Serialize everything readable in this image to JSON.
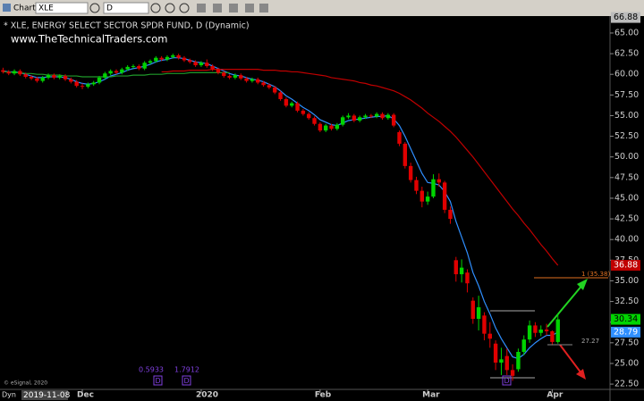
{
  "chart_data": {
    "type": "candlestick",
    "toolbar": {
      "menu": "Chart",
      "symbol": "XLE",
      "interval": "D"
    },
    "title": "* XLE, ENERGY SELECT SECTOR SPDR FUND, D (Dynamic)",
    "subtitle": "www.TheTechnicalTraders.com",
    "copyright": "© eSignal, 2020",
    "mode": "Dyn",
    "cursor_date": "2019-11-08",
    "categories": [
      null,
      null,
      null,
      null,
      null,
      null,
      null,
      null,
      null,
      null,
      null,
      null,
      null,
      null,
      "Dec",
      null,
      null,
      null,
      null,
      null,
      null,
      null,
      null,
      null,
      null,
      null,
      null,
      null,
      null,
      null,
      null,
      null,
      null,
      null,
      null,
      "2020",
      null,
      null,
      null,
      null,
      null,
      null,
      null,
      null,
      null,
      null,
      null,
      null,
      null,
      null,
      null,
      null,
      null,
      null,
      null,
      null,
      "Feb",
      null,
      null,
      null,
      null,
      null,
      null,
      null,
      null,
      null,
      null,
      null,
      null,
      null,
      null,
      null,
      null,
      null,
      null,
      "Mar",
      null,
      null,
      null,
      null,
      null,
      null,
      null,
      null,
      null,
      null,
      null,
      null,
      null,
      null,
      null,
      null,
      null,
      null,
      null,
      null,
      null,
      "Apr",
      null
    ],
    "ohlc": [
      [
        60.5,
        60.8,
        60.1,
        60.3
      ],
      [
        60.3,
        60.5,
        59.9,
        60.1
      ],
      [
        60.1,
        60.6,
        59.9,
        60.4
      ],
      [
        60.4,
        60.6,
        59.8,
        60.0
      ],
      [
        60.0,
        60.2,
        59.5,
        59.7
      ],
      [
        59.7,
        59.9,
        59.3,
        59.5
      ],
      [
        59.5,
        59.7,
        59.0,
        59.2
      ],
      [
        59.2,
        59.8,
        59.0,
        59.6
      ],
      [
        59.6,
        60.1,
        59.4,
        59.9
      ],
      [
        59.9,
        60.1,
        59.4,
        59.6
      ],
      [
        59.6,
        60.0,
        59.4,
        59.8
      ],
      [
        59.8,
        60.0,
        59.2,
        59.4
      ],
      [
        59.4,
        59.6,
        58.9,
        59.1
      ],
      [
        59.1,
        59.3,
        58.4,
        58.6
      ],
      [
        58.6,
        58.9,
        58.2,
        58.5
      ],
      [
        58.5,
        59.0,
        58.3,
        58.8
      ],
      [
        58.8,
        59.2,
        58.6,
        59.0
      ],
      [
        59.0,
        59.8,
        58.8,
        59.6
      ],
      [
        59.6,
        60.3,
        59.4,
        60.1
      ],
      [
        60.1,
        60.6,
        59.9,
        60.4
      ],
      [
        60.4,
        60.6,
        60.0,
        60.2
      ],
      [
        60.2,
        60.8,
        60.0,
        60.6
      ],
      [
        60.6,
        61.1,
        60.4,
        60.9
      ],
      [
        60.9,
        61.2,
        60.7,
        61.0
      ],
      [
        61.0,
        61.2,
        60.5,
        60.7
      ],
      [
        60.7,
        61.6,
        60.5,
        61.4
      ],
      [
        61.4,
        61.8,
        61.2,
        61.6
      ],
      [
        61.6,
        62.2,
        61.4,
        62.0
      ],
      [
        62.0,
        62.2,
        61.6,
        61.8
      ],
      [
        61.8,
        62.3,
        61.6,
        62.1
      ],
      [
        62.1,
        62.5,
        61.9,
        62.3
      ],
      [
        62.3,
        62.5,
        61.8,
        62.0
      ],
      [
        62.0,
        62.2,
        61.5,
        61.7
      ],
      [
        61.7,
        61.9,
        61.3,
        61.5
      ],
      [
        61.5,
        61.7,
        60.9,
        61.1
      ],
      [
        61.1,
        61.6,
        60.9,
        61.4
      ],
      [
        61.4,
        61.8,
        60.8,
        61.0
      ],
      [
        61.0,
        61.2,
        60.4,
        60.6
      ],
      [
        60.6,
        60.8,
        60.0,
        60.2
      ],
      [
        60.2,
        60.4,
        59.6,
        59.8
      ],
      [
        59.8,
        60.0,
        59.4,
        59.6
      ],
      [
        59.6,
        60.1,
        59.4,
        59.9
      ],
      [
        59.9,
        60.1,
        59.3,
        59.5
      ],
      [
        59.5,
        59.7,
        59.0,
        59.2
      ],
      [
        59.2,
        59.6,
        59.0,
        59.4
      ],
      [
        59.4,
        59.6,
        58.8,
        59.0
      ],
      [
        59.0,
        59.2,
        58.5,
        58.7
      ],
      [
        58.7,
        58.9,
        58.2,
        58.4
      ],
      [
        58.4,
        58.6,
        57.6,
        57.8
      ],
      [
        57.8,
        58.0,
        56.8,
        57.0
      ],
      [
        57.0,
        57.2,
        56.0,
        56.2
      ],
      [
        56.2,
        56.7,
        56.0,
        56.5
      ],
      [
        56.5,
        56.7,
        55.4,
        55.6
      ],
      [
        55.6,
        55.8,
        55.0,
        55.2
      ],
      [
        55.2,
        55.4,
        54.5,
        54.7
      ],
      [
        54.7,
        54.9,
        53.8,
        54.0
      ],
      [
        54.0,
        54.2,
        53.0,
        53.2
      ],
      [
        53.2,
        54.0,
        53.0,
        53.8
      ],
      [
        53.8,
        54.0,
        53.2,
        53.4
      ],
      [
        53.4,
        54.1,
        53.2,
        53.9
      ],
      [
        53.9,
        55.0,
        53.7,
        54.8
      ],
      [
        54.8,
        55.3,
        54.6,
        55.0
      ],
      [
        55.0,
        55.2,
        54.2,
        54.4
      ],
      [
        54.4,
        55.0,
        54.2,
        54.8
      ],
      [
        54.8,
        55.2,
        54.6,
        55.0
      ],
      [
        55.0,
        55.2,
        54.7,
        54.9
      ],
      [
        54.9,
        55.4,
        54.7,
        55.2
      ],
      [
        55.2,
        55.4,
        54.5,
        54.7
      ],
      [
        54.7,
        55.3,
        54.5,
        55.1
      ],
      [
        55.1,
        55.3,
        53.6,
        53.8
      ],
      [
        53.0,
        53.2,
        51.3,
        51.6
      ],
      [
        51.6,
        51.8,
        48.6,
        48.9
      ],
      [
        48.9,
        49.3,
        46.9,
        47.2
      ],
      [
        47.2,
        47.6,
        45.5,
        45.9
      ],
      [
        45.9,
        46.4,
        43.9,
        44.6
      ],
      [
        44.6,
        45.8,
        44.2,
        45.2
      ],
      [
        45.2,
        47.9,
        45.0,
        47.3
      ],
      [
        47.3,
        48.0,
        46.4,
        46.9
      ],
      [
        46.9,
        47.1,
        43.2,
        43.6
      ],
      [
        43.6,
        44.0,
        41.9,
        42.5
      ],
      [
        37.5,
        37.9,
        34.9,
        35.8
      ],
      [
        35.8,
        37.6,
        34.8,
        36.6
      ],
      [
        36.0,
        36.4,
        33.6,
        34.7
      ],
      [
        32.6,
        33.0,
        29.8,
        30.4
      ],
      [
        30.4,
        33.2,
        29.0,
        31.8
      ],
      [
        30.8,
        31.2,
        27.8,
        28.6
      ],
      [
        28.6,
        30.0,
        26.9,
        28.0
      ],
      [
        27.4,
        27.8,
        24.2,
        25.1
      ],
      [
        25.1,
        26.9,
        23.6,
        25.5
      ],
      [
        25.9,
        26.8,
        23.6,
        24.2
      ],
      [
        24.2,
        24.9,
        22.9,
        23.5
      ],
      [
        24.3,
        26.8,
        24.0,
        26.4
      ],
      [
        26.4,
        28.4,
        26.0,
        27.9
      ],
      [
        27.9,
        30.2,
        27.5,
        29.6
      ],
      [
        29.6,
        30.0,
        28.2,
        28.7
      ],
      [
        28.7,
        29.6,
        28.3,
        29.1
      ],
      [
        29.1,
        29.8,
        28.4,
        28.9
      ],
      [
        28.9,
        29.0,
        27.2,
        27.6
      ],
      [
        27.6,
        31.0,
        27.4,
        30.34
      ]
    ],
    "up_color": "#00d400",
    "down_color": "#e00000",
    "series": [
      {
        "color": "#2f8fff",
        "values": [
          60.4,
          60.3,
          60.3,
          60.2,
          60.0,
          59.8,
          59.6,
          59.6,
          59.7,
          59.7,
          59.7,
          59.6,
          59.4,
          59.1,
          58.9,
          58.8,
          58.9,
          59.1,
          59.4,
          59.8,
          60.0,
          60.2,
          60.5,
          60.7,
          60.8,
          61.0,
          61.2,
          61.5,
          61.7,
          61.8,
          62.0,
          62.0,
          61.9,
          61.7,
          61.5,
          61.4,
          61.3,
          61.0,
          60.7,
          60.4,
          60.1,
          59.9,
          59.8,
          59.6,
          59.4,
          59.3,
          59.1,
          58.8,
          58.5,
          58.0,
          57.4,
          57.0,
          56.5,
          56.0,
          55.6,
          55.1,
          54.5,
          54.2,
          53.9,
          53.8,
          54.1,
          54.4,
          54.5,
          54.6,
          54.7,
          54.8,
          54.9,
          54.9,
          55.0,
          54.6,
          53.8,
          52.5,
          51.0,
          49.5,
          48.0,
          46.9,
          46.8,
          46.6,
          45.8,
          44.6,
          42.2,
          40.3,
          38.4,
          36.0,
          34.4,
          32.5,
          31.0,
          29.3,
          28.0,
          26.9,
          25.8,
          25.6,
          26.1,
          26.9,
          27.5,
          28.0,
          28.4,
          28.4,
          28.79
        ]
      },
      {
        "color": "#c00000",
        "values": [
          null,
          null,
          null,
          null,
          null,
          null,
          null,
          null,
          null,
          null,
          null,
          null,
          null,
          null,
          null,
          null,
          null,
          null,
          null,
          null,
          null,
          null,
          null,
          null,
          null,
          null,
          null,
          null,
          60.3,
          60.3,
          60.4,
          60.4,
          60.4,
          60.5,
          60.5,
          60.5,
          60.5,
          60.6,
          60.6,
          60.6,
          60.6,
          60.6,
          60.6,
          60.6,
          60.6,
          60.6,
          60.5,
          60.5,
          60.5,
          60.4,
          60.4,
          60.3,
          60.3,
          60.2,
          60.1,
          60.0,
          59.9,
          59.8,
          59.6,
          59.5,
          59.4,
          59.3,
          59.2,
          59.0,
          58.9,
          58.7,
          58.6,
          58.4,
          58.2,
          58.0,
          57.7,
          57.3,
          56.9,
          56.4,
          55.9,
          55.3,
          54.8,
          54.3,
          53.7,
          53.1,
          52.4,
          51.6,
          50.8,
          50.0,
          49.1,
          48.2,
          47.3,
          46.4,
          45.5,
          44.6,
          43.7,
          42.9,
          42.0,
          41.2,
          40.3,
          39.4,
          38.6,
          37.7,
          36.88
        ]
      },
      {
        "color": "#1f9a2a",
        "values": [
          60.3,
          60.3,
          60.2,
          60.2,
          60.1,
          60.1,
          60.0,
          60.0,
          59.9,
          59.9,
          59.9,
          59.8,
          59.8,
          59.8,
          59.7,
          59.7,
          59.7,
          59.7,
          59.7,
          59.7,
          59.8,
          59.8,
          59.8,
          59.9,
          59.9,
          59.9,
          60.0,
          60.0,
          60.0,
          60.1,
          60.1,
          60.1,
          60.1,
          60.2,
          60.2,
          60.2,
          60.2,
          60.2,
          60.2,
          60.2,
          60.2,
          null,
          null,
          null,
          null,
          null,
          null,
          null,
          null,
          null,
          null,
          null,
          null,
          null,
          null,
          null,
          null,
          null,
          null,
          null,
          null,
          null,
          null,
          null,
          null,
          null,
          null,
          null,
          null,
          null,
          null,
          null,
          null,
          null,
          null,
          null,
          null,
          null,
          null,
          null,
          null,
          null,
          null,
          null,
          null,
          null,
          null,
          null,
          null,
          null,
          null,
          null,
          null,
          null,
          null,
          null,
          null,
          null,
          null
        ]
      }
    ],
    "scale_top": 66.88,
    "ylim": [
      21.86,
      67.05
    ],
    "yticks": [
      {
        "value": 22.5,
        "label": "22.50"
      },
      {
        "value": 25,
        "label": "25.00"
      },
      {
        "value": 27.5,
        "label": "27.50"
      },
      {
        "value": 30,
        "label": "30.00"
      },
      {
        "value": 32.5,
        "label": "32.50"
      },
      {
        "value": 35,
        "label": "35.00"
      },
      {
        "value": 37.5,
        "label": "37.50"
      },
      {
        "value": 40,
        "label": "40.00"
      },
      {
        "value": 42.5,
        "label": "42.50"
      },
      {
        "value": 45,
        "label": "45.00"
      },
      {
        "value": 47.5,
        "label": "47.50"
      },
      {
        "value": 50,
        "label": "50.00"
      },
      {
        "value": 52.5,
        "label": "52.50"
      },
      {
        "value": 55,
        "label": "55.00"
      },
      {
        "value": 57.5,
        "label": "57.50"
      },
      {
        "value": 60,
        "label": "60.00"
      },
      {
        "value": 62.5,
        "label": "62.50"
      },
      {
        "value": 65,
        "label": "65.00"
      }
    ],
    "levels": [
      {
        "value": 35.38,
        "label": "1 (35.38)"
      },
      27.27
    ],
    "study_values": [
      0.5933,
      1.7912
    ],
    "markers": [
      "D",
      "D",
      "D"
    ]
  }
}
